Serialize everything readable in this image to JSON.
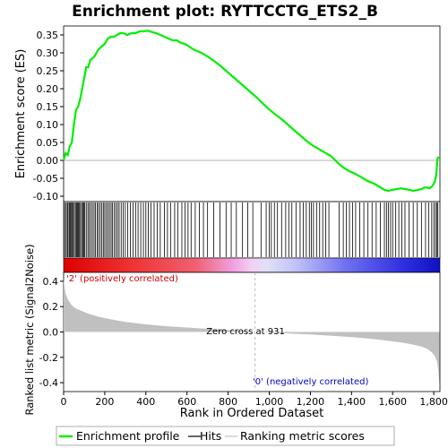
{
  "chart_data": {
    "type": "line",
    "title": "Enrichment plot: RYTTCCTG_ETS2_B",
    "n_genes": 1830,
    "top_panel": {
      "ylabel": "Enrichment score (ES)",
      "ylim": [
        -0.115,
        0.375
      ],
      "yticks": [
        -0.1,
        -0.05,
        0.0,
        0.05,
        0.1,
        0.15,
        0.2,
        0.25,
        0.3,
        0.35
      ],
      "ytick_labels": [
        "-0.10",
        "-0.05",
        "0.00",
        "0.05",
        "0.10",
        "0.15",
        "0.20",
        "0.25",
        "0.30",
        "0.35"
      ],
      "color": "#00ee00",
      "series": [
        {
          "name": "Enrichment profile",
          "x": [
            0,
            10,
            20,
            30,
            40,
            50,
            60,
            70,
            80,
            90,
            100,
            110,
            120,
            130,
            140,
            150,
            160,
            170,
            180,
            190,
            200,
            215,
            230,
            245,
            260,
            275,
            290,
            310,
            330,
            350,
            370,
            390,
            410,
            430,
            450,
            470,
            490,
            510,
            530,
            550,
            570,
            590,
            610,
            630,
            650,
            670,
            700,
            730,
            760,
            790,
            820,
            850,
            880,
            910,
            940,
            970,
            1000,
            1030,
            1060,
            1090,
            1120,
            1150,
            1180,
            1210,
            1240,
            1270,
            1300,
            1330,
            1360,
            1390,
            1420,
            1450,
            1480,
            1510,
            1540,
            1560,
            1580,
            1600,
            1620,
            1640,
            1660,
            1680,
            1700,
            1720,
            1740,
            1760,
            1780,
            1795,
            1805,
            1812,
            1818,
            1825
          ],
          "values": [
            0.0,
            0.02,
            0.015,
            0.04,
            0.05,
            0.1,
            0.14,
            0.15,
            0.17,
            0.2,
            0.23,
            0.26,
            0.26,
            0.28,
            0.285,
            0.29,
            0.3,
            0.31,
            0.315,
            0.32,
            0.325,
            0.34,
            0.345,
            0.345,
            0.35,
            0.355,
            0.355,
            0.35,
            0.355,
            0.355,
            0.36,
            0.36,
            0.362,
            0.358,
            0.355,
            0.35,
            0.345,
            0.34,
            0.335,
            0.335,
            0.328,
            0.325,
            0.318,
            0.31,
            0.305,
            0.3,
            0.29,
            0.278,
            0.265,
            0.25,
            0.235,
            0.22,
            0.205,
            0.19,
            0.175,
            0.158,
            0.142,
            0.128,
            0.115,
            0.1,
            0.085,
            0.07,
            0.055,
            0.042,
            0.032,
            0.022,
            0.012,
            -0.005,
            -0.02,
            -0.03,
            -0.038,
            -0.048,
            -0.058,
            -0.065,
            -0.075,
            -0.082,
            -0.085,
            -0.082,
            -0.08,
            -0.078,
            -0.08,
            -0.082,
            -0.085,
            -0.083,
            -0.08,
            -0.075,
            -0.078,
            -0.07,
            -0.06,
            -0.04,
            0.005,
            0.01
          ]
        }
      ]
    },
    "hits_panel": {
      "legend_name": "Hits",
      "hit_ranks": [
        5,
        12,
        18,
        22,
        28,
        33,
        38,
        42,
        47,
        52,
        58,
        63,
        68,
        72,
        77,
        82,
        88,
        93,
        98,
        103,
        110,
        118,
        125,
        132,
        140,
        148,
        155,
        163,
        170,
        178,
        186,
        193,
        200,
        208,
        215,
        223,
        231,
        238,
        246,
        254,
        262,
        270,
        280,
        290,
        300,
        312,
        325,
        338,
        350,
        362,
        375,
        388,
        400,
        412,
        425,
        440,
        455,
        470,
        490,
        505,
        520,
        540,
        555,
        575,
        590,
        605,
        620,
        640,
        660,
        680,
        700,
        730,
        760,
        790,
        815,
        840,
        870,
        895,
        920,
        960,
        985,
        1000,
        1010,
        1025,
        1040,
        1060,
        1080,
        1095,
        1110,
        1130,
        1150,
        1165,
        1180,
        1195,
        1205,
        1215,
        1230,
        1245,
        1260,
        1275,
        1290,
        1340,
        1360,
        1375,
        1390,
        1405,
        1420,
        1440,
        1460,
        1480,
        1500,
        1520,
        1540,
        1560,
        1570,
        1580,
        1590,
        1600,
        1615,
        1630,
        1645,
        1660,
        1680,
        1700,
        1720,
        1740,
        1760,
        1775,
        1790,
        1800,
        1808,
        1815,
        1820
      ]
    },
    "bottom_panel": {
      "xlabel": "Rank in Ordered Dataset",
      "ylabel": "Ranked list metric (Signal2Noise)",
      "legend_name": "Ranking metric scores",
      "fill_color": "#c0c0c0",
      "ylim": [
        -0.47,
        0.47
      ],
      "yticks": [
        -0.4,
        -0.2,
        0.0,
        0.2,
        0.4
      ],
      "ytick_labels": [
        "-0.4",
        "-0.2",
        "0.0",
        "0.2",
        "0.4"
      ],
      "xticks": [
        0,
        200,
        400,
        600,
        800,
        1000,
        1200,
        1400,
        1600,
        1800
      ],
      "xtick_labels": [
        "0",
        "200",
        "400",
        "600",
        "800",
        "1,000",
        "1,200",
        "1,400",
        "1,600",
        "1,800"
      ],
      "x": [
        0,
        5,
        10,
        20,
        35,
        55,
        80,
        120,
        170,
        230,
        300,
        400,
        500,
        600,
        700,
        800,
        880,
        931,
        1000,
        1100,
        1200,
        1300,
        1400,
        1500,
        1580,
        1650,
        1700,
        1740,
        1770,
        1790,
        1805,
        1815,
        1822,
        1828
      ],
      "values": [
        0.42,
        0.35,
        0.3,
        0.26,
        0.22,
        0.19,
        0.17,
        0.145,
        0.12,
        0.1,
        0.08,
        0.06,
        0.045,
        0.035,
        0.025,
        0.015,
        0.007,
        0.0,
        -0.005,
        -0.012,
        -0.02,
        -0.03,
        -0.04,
        -0.055,
        -0.07,
        -0.085,
        -0.1,
        -0.115,
        -0.135,
        -0.16,
        -0.19,
        -0.23,
        -0.3,
        -0.42
      ],
      "zero_cross_rank": 931,
      "zero_cross_label": "Zero cross at 931",
      "positive_label": "'2' (positively correlated)",
      "negative_label": "'0' (negatively correlated)"
    },
    "legend": {
      "items": [
        "Enrichment profile",
        "Hits",
        "Ranking metric scores"
      ],
      "colors": [
        "#00ee00",
        "#000000",
        "#c0c0c0"
      ],
      "placement": "bottom"
    },
    "colors": {
      "positive": "#ee0000",
      "negative": "#0000ee",
      "axis": "#000000",
      "grid_zero": "#888888"
    }
  }
}
